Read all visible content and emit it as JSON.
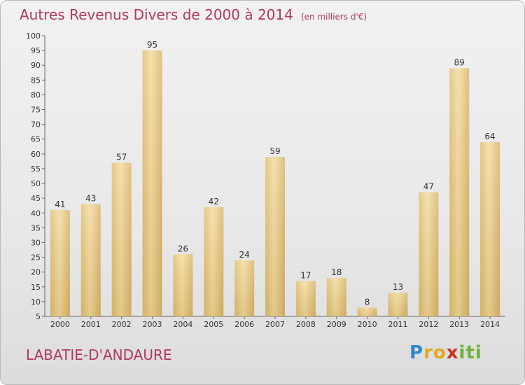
{
  "chart_data": {
    "type": "bar",
    "title": "Autres Revenus Divers de 2000 à 2014",
    "subtitle": "(en milliers d'€)",
    "categories": [
      "2000",
      "2001",
      "2002",
      "2003",
      "2004",
      "2005",
      "2006",
      "2007",
      "2008",
      "2009",
      "2010",
      "2011",
      "2012",
      "2013",
      "2014"
    ],
    "values": [
      41,
      43,
      57,
      95,
      26,
      42,
      24,
      59,
      17,
      18,
      8,
      13,
      47,
      89,
      64
    ],
    "ylim": [
      5,
      100
    ],
    "yticks": [
      5,
      10,
      15,
      20,
      25,
      30,
      35,
      40,
      45,
      50,
      55,
      60,
      65,
      70,
      75,
      80,
      85,
      90,
      95,
      100
    ],
    "grid": false,
    "bar_color": "#e8c97f"
  },
  "footer": {
    "commune": "LABATIE-D'ANDAURE",
    "logo_letters": [
      "P",
      "r",
      "o",
      "x",
      "i",
      "t",
      "i"
    ]
  },
  "colors": {
    "title": "#b03a5b",
    "logo": [
      "#2f86c8",
      "#e2a81f",
      "#e2a81f",
      "#d2301f",
      "#6bb23a",
      "#6bb23a",
      "#6bb23a"
    ]
  }
}
